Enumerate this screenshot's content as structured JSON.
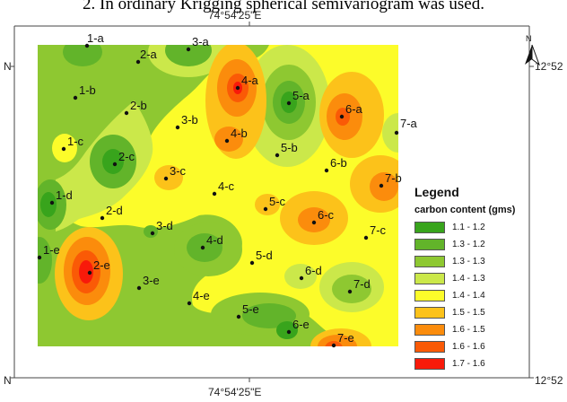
{
  "caption": "2. In ordinary Krigging spherical semivariogram was used.",
  "coords": {
    "top": "74°54'25\"E",
    "bottom": "74°54'25\"E",
    "left_top": "N",
    "left_bottom": "N",
    "right_top": "12°52",
    "right_bottom": "12°52",
    "north_label": "N"
  },
  "legend": {
    "title": "Legend",
    "subtitle": "carbon content (gms)",
    "items": [
      {
        "label": "1.1 - 1.2",
        "color": "#38a41c"
      },
      {
        "label": "1.3 - 1.2",
        "color": "#62b42a"
      },
      {
        "label": "1.3 - 1.3",
        "color": "#8ec831"
      },
      {
        "label": "1.4 - 1.3",
        "color": "#cbe84a"
      },
      {
        "label": "1.4 - 1.4",
        "color": "#fcfc2a"
      },
      {
        "label": "1.5 - 1.5",
        "color": "#fcc21a"
      },
      {
        "label": "1.6 - 1.5",
        "color": "#fb8c0c"
      },
      {
        "label": "1.6 - 1.6",
        "color": "#fa5a06"
      },
      {
        "label": "1.7 - 1.6",
        "color": "#f81a0a"
      }
    ]
  },
  "points": [
    "1-a",
    "2-a",
    "3-a",
    "4-a",
    "5-a",
    "6-a",
    "7-a",
    "1-b",
    "2-b",
    "3-b",
    "4-b",
    "5-b",
    "6-b",
    "7-b",
    "1-c",
    "2-c",
    "3-c",
    "4-c",
    "5-c",
    "6-c",
    "7-c",
    "1-d",
    "2-d",
    "3-d",
    "4-d",
    "5-d",
    "6-d",
    "7-d",
    "1-e",
    "2-e",
    "3-e",
    "4-e",
    "5-e",
    "6-e",
    "7-e"
  ]
}
